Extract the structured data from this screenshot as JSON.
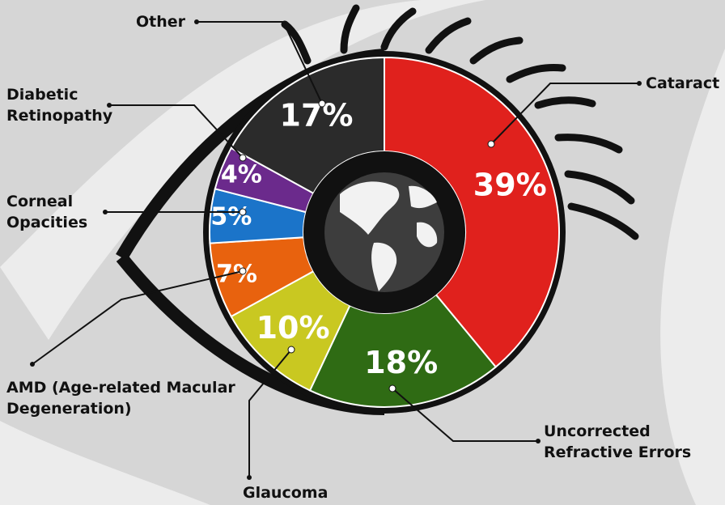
{
  "chart_data": {
    "type": "pie",
    "categories": [
      "Cataract",
      "Uncorrected Refractive Errors",
      "Glaucoma",
      "AMD (Age-related Macular Degeneration)",
      "Corneal Opacities",
      "Diabetic Retinopathy",
      "Other"
    ],
    "values": [
      39,
      18,
      10,
      7,
      5,
      4,
      17
    ],
    "value_labels": [
      "39%",
      "18%",
      "10%",
      "7%",
      "5%",
      "4%",
      "17%"
    ],
    "colors": [
      "#e0211d",
      "#2f6b14",
      "#c9c821",
      "#e8620e",
      "#1b74c9",
      "#6b2a8c",
      "#2b2b2b"
    ]
  }
}
